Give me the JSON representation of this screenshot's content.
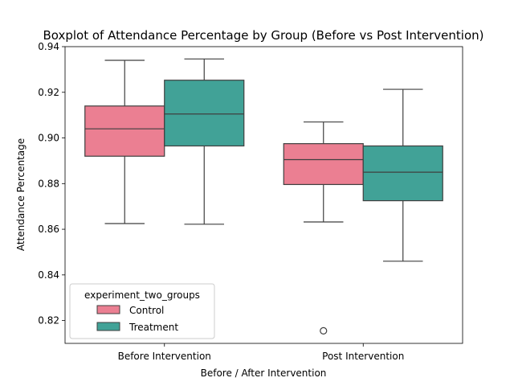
{
  "chart_data": {
    "type": "boxplot",
    "title": "Boxplot of Attendance Percentage by Group (Before vs Post Intervention)",
    "xlabel": "Before / After Intervention",
    "ylabel": "Attendance Percentage",
    "categories": [
      "Before Intervention",
      "Post Intervention"
    ],
    "ylim": [
      0.81,
      0.94
    ],
    "yticks": [
      "0.82",
      "0.84",
      "0.86",
      "0.88",
      "0.90",
      "0.92",
      "0.94"
    ],
    "grid": false,
    "legend": {
      "title": "experiment_two_groups",
      "placement": "lower-left"
    },
    "series": [
      {
        "name": "Control",
        "color": "#eb7f92",
        "boxes": [
          {
            "category": "Before Intervention",
            "whisker_low": 0.8625,
            "q1": 0.892,
            "median": 0.904,
            "q3": 0.914,
            "whisker_high": 0.934,
            "outliers": []
          },
          {
            "category": "Post Intervention",
            "whisker_low": 0.8632,
            "q1": 0.8796,
            "median": 0.8905,
            "q3": 0.8975,
            "whisker_high": 0.907,
            "outliers": [
              0.8155
            ]
          }
        ]
      },
      {
        "name": "Treatment",
        "color": "#41a297",
        "boxes": [
          {
            "category": "Before Intervention",
            "whisker_low": 0.8622,
            "q1": 0.8965,
            "median": 0.9105,
            "q3": 0.9253,
            "whisker_high": 0.9346,
            "outliers": []
          },
          {
            "category": "Post Intervention",
            "whisker_low": 0.846,
            "q1": 0.8725,
            "median": 0.885,
            "q3": 0.8965,
            "whisker_high": 0.9213,
            "outliers": []
          }
        ]
      }
    ]
  }
}
